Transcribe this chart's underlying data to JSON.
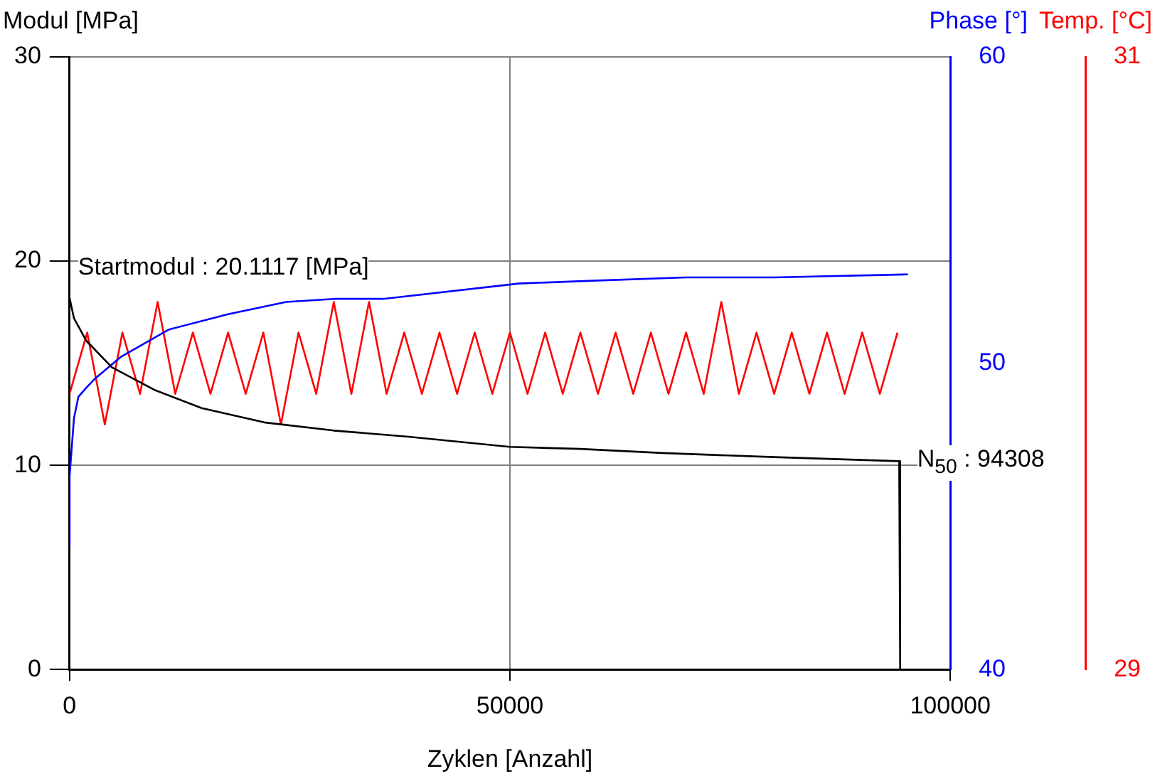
{
  "chart_data": {
    "type": "line",
    "xlabel": "Zyklen [Anzahl]",
    "ylabel": "Modul [MPa]",
    "y2label": "Phase [°]",
    "y3label": "Temp. [°C]",
    "xlim": [
      0,
      100000
    ],
    "xticks": [
      0,
      50000,
      100000
    ],
    "ylim": [
      0,
      30
    ],
    "yticks": [
      0,
      10,
      20,
      30
    ],
    "y2lim": [
      40,
      60
    ],
    "y2ticks": [
      40,
      50,
      60
    ],
    "y3lim": [
      29,
      31
    ],
    "y3ticks": [
      29,
      31
    ],
    "grid": true,
    "legend": false,
    "marker": "none",
    "line_style": "solid",
    "annotations": [
      "Startmodul : 20.1117 [MPa]",
      {
        "text": "N$_{50}$ : 94308",
        "x": 94308,
        "y": 10
      }
    ],
    "series": [
      {
        "color": "#000000",
        "x": [
          0,
          500,
          1900,
          4800,
          9600,
          15000,
          22100,
          30000,
          38500,
          50000,
          58000,
          67300,
          80000,
          94200,
          94308,
          94308
        ],
        "values": [
          18.2,
          17.2,
          16.1,
          14.8,
          13.7,
          12.8,
          12.1,
          11.7,
          11.4,
          10.9,
          10.8,
          10.6,
          10.4,
          10.2,
          10.2,
          0
        ]
      },
      {
        "color": "#0000ff",
        "axis": "y2",
        "x": [
          0,
          0,
          500,
          1000,
          1900,
          2900,
          5800,
          11300,
          18000,
          24600,
          30000,
          35600,
          51000,
          60000,
          70000,
          80000,
          95200
        ],
        "values": [
          44,
          46.3,
          48.2,
          48.9,
          49.2,
          49.5,
          50.2,
          51.1,
          51.6,
          52.0,
          52.1,
          52.1,
          52.6,
          52.7,
          52.8,
          52.8,
          52.9
        ]
      },
      {
        "color": "#ff0000",
        "axis": "y3",
        "x": [
          0,
          2000,
          4000,
          6000,
          8000,
          10000,
          12000,
          14000,
          16000,
          18000,
          20000,
          22000,
          24000,
          26000,
          28000,
          30000,
          32000,
          34000,
          36000,
          38000,
          40000,
          42000,
          44000,
          46000,
          48000,
          50000,
          52000,
          54000,
          56000,
          58000,
          60000,
          62000,
          64000,
          66000,
          68000,
          70000,
          72000,
          74000,
          76000,
          78000,
          80000,
          82000,
          84000,
          86000,
          88000,
          90000,
          92000,
          94000
        ],
        "values": [
          29.9,
          30.1,
          29.8,
          30.1,
          29.9,
          30.2,
          29.9,
          30.1,
          29.9,
          30.1,
          29.9,
          30.1,
          29.8,
          30.1,
          29.9,
          30.2,
          29.9,
          30.2,
          29.9,
          30.1,
          29.9,
          30.1,
          29.9,
          30.1,
          29.9,
          30.1,
          29.9,
          30.1,
          29.9,
          30.1,
          29.9,
          30.1,
          29.9,
          30.1,
          29.9,
          30.1,
          29.9,
          30.2,
          29.9,
          30.1,
          29.9,
          30.1,
          29.9,
          30.1,
          29.9,
          30.1,
          29.9,
          30.1
        ]
      }
    ]
  }
}
